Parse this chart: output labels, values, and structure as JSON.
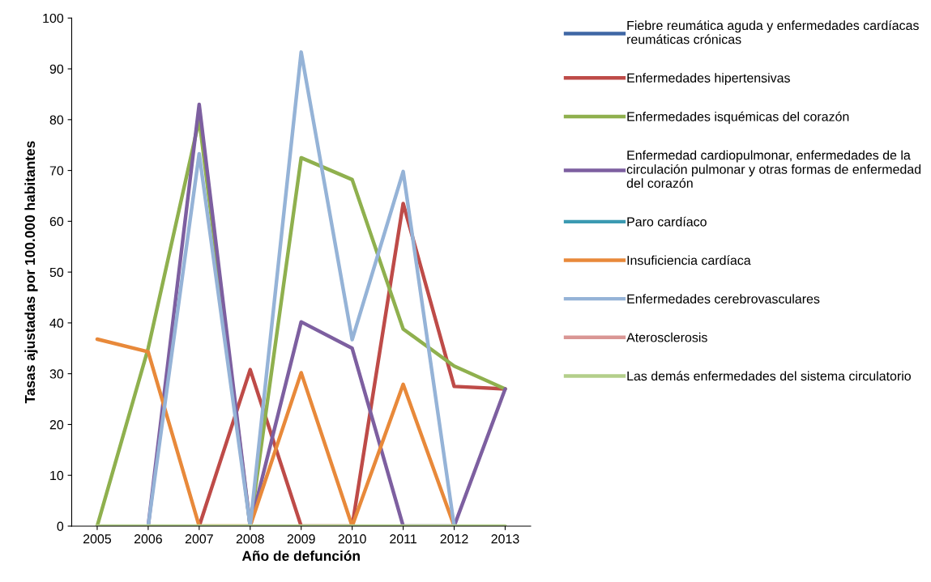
{
  "chart_data": {
    "type": "line",
    "xlabel": "Año de defunción",
    "ylabel": "Tasas ajustadas por 100.000 habitantes",
    "categories": [
      "2005",
      "2006",
      "2007",
      "2008",
      "2009",
      "2010",
      "2011",
      "2012",
      "2013"
    ],
    "ylim": [
      0,
      100
    ],
    "yticks": [
      0,
      10,
      20,
      30,
      40,
      50,
      60,
      70,
      80,
      90,
      100
    ],
    "grid": false,
    "legend": "right",
    "marker": "none",
    "line_style": "solid",
    "series": [
      {
        "name": "Fiebre reumática aguda y enfermedades cardíacas\nreumáticas crónicas",
        "color": "#3f67a5",
        "values": [
          null,
          null,
          null,
          null,
          null,
          null,
          null,
          null,
          null
        ]
      },
      {
        "name": "Enfermedades hipertensivas",
        "color": "#be4b48",
        "values": [
          null,
          null,
          0,
          30.8,
          0,
          0,
          63.5,
          27.5,
          27
        ]
      },
      {
        "name": "Enfermedades isquémicas del corazón",
        "color": "#8fb04e",
        "values": [
          0,
          35,
          80,
          0,
          72.5,
          68.2,
          38.8,
          31.5,
          27
        ]
      },
      {
        "name": "Enfermedad cardiopulmonar, enfermedades de la\ncirculación pulmonar y otras formas de enfermedad\ndel corazón",
        "color": "#7d5fa0",
        "values": [
          null,
          0,
          83,
          0,
          40.2,
          35,
          0,
          0,
          27
        ]
      },
      {
        "name": "Paro cardíaco",
        "color": "#3b9ab2",
        "values": [
          null,
          null,
          null,
          null,
          null,
          null,
          null,
          null,
          null
        ]
      },
      {
        "name": "Insuficiencia cardíaca",
        "color": "#e8893a",
        "values": [
          36.8,
          34.3,
          0,
          0,
          30.2,
          0,
          27.9,
          0,
          null
        ]
      },
      {
        "name": "Enfermedades cerebrovasculares",
        "color": "#95b3d7",
        "values": [
          null,
          0,
          73.3,
          0,
          93.3,
          36.7,
          69.8,
          0,
          null
        ]
      },
      {
        "name": "Aterosclerosis",
        "color": "#d99694",
        "values": [
          null,
          null,
          null,
          null,
          null,
          null,
          null,
          null,
          null
        ]
      },
      {
        "name": "Las demás enfermedades del sistema circulatorio",
        "color": "#b3cf8a",
        "values": [
          0,
          0,
          0,
          0,
          0,
          0,
          0,
          0,
          0
        ]
      }
    ]
  }
}
